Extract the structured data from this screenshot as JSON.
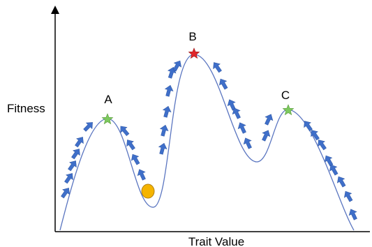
{
  "axes": {
    "x_label": "Trait Value",
    "y_label": "Fitness"
  },
  "peaks": [
    {
      "label": "A",
      "marker": "star",
      "color": "#7dc95e"
    },
    {
      "label": "B",
      "marker": "star",
      "color": "#e0262b"
    },
    {
      "label": "C",
      "marker": "star",
      "color": "#7dc95e"
    }
  ],
  "population_marker": {
    "shape": "circle",
    "color": "#f5b400",
    "stroke": "#b07f10"
  },
  "curve": {
    "color": "#5a75c0"
  },
  "arrows": {
    "color": "#3f6fc9",
    "icon": "up-arrow-icon"
  },
  "axis_color": "#000000"
}
